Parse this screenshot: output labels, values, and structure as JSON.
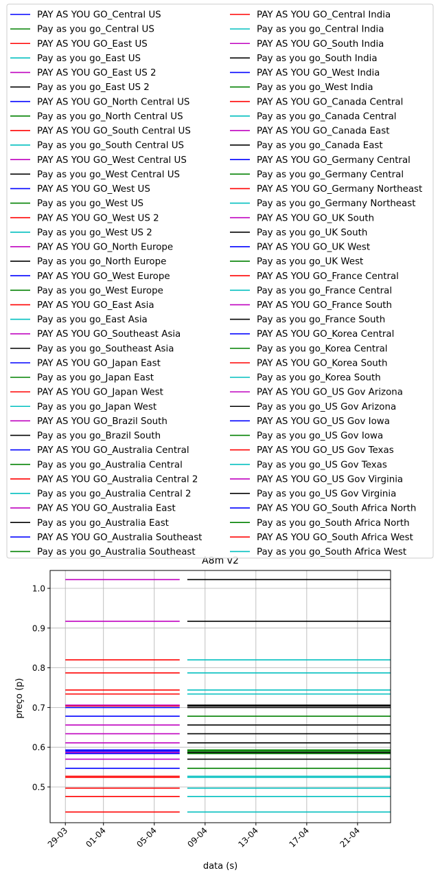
{
  "chart_data": {
    "type": "line",
    "title": "A8m v2",
    "xlabel": "data (s)",
    "ylabel": "preço (p)",
    "x_ticks": [
      "29-03",
      "01-04",
      "05-04",
      "09-04",
      "13-04",
      "17-04",
      "21-04"
    ],
    "x_tick_offsets_days": [
      0,
      3,
      7,
      11,
      15,
      19,
      23
    ],
    "x_range_days": [
      -1.2,
      25.6
    ],
    "segment_a_days": [
      0,
      9
    ],
    "segment_b_days": [
      9.6,
      25.6
    ],
    "y_ticks": [
      "0.5",
      "0.6",
      "0.7",
      "0.8",
      "0.9",
      "1.0"
    ],
    "y_tick_values": [
      0.5,
      0.6,
      0.7,
      0.8,
      0.9,
      1.0
    ],
    "ylim": [
      0.41,
      1.045
    ],
    "grid": true,
    "legend_columns": 2,
    "legend_placement": "top",
    "color_cycle": [
      "#0000ff",
      "#008000",
      "#ff0000",
      "#00bfbf",
      "#bf00bf",
      "#000000"
    ],
    "segment_a_prices": [
      0.437,
      0.476,
      0.497,
      0.524,
      0.527,
      0.547,
      0.57,
      0.584,
      0.587,
      0.59,
      0.593,
      0.611,
      0.634,
      0.656,
      0.678,
      0.7,
      0.704,
      0.706,
      0.734,
      0.744,
      0.787,
      0.82,
      0.917,
      1.022
    ],
    "segment_a_colors": [
      "#ff0000",
      "#ff0000",
      "#ff0000",
      "#ff0000",
      "#ff0000",
      "#0000ff",
      "#bf00bf",
      "#0000ff",
      "#bf00bf",
      "#0000ff",
      "#0000ff",
      "#bf00bf",
      "#bf00bf",
      "#bf00bf",
      "#0000ff",
      "#0000ff",
      "#ff0000",
      "#bf00bf",
      "#ff0000",
      "#ff0000",
      "#ff0000",
      "#ff0000",
      "#bf00bf",
      "#bf00bf"
    ],
    "segment_b_prices": [
      0.437,
      0.476,
      0.497,
      0.524,
      0.527,
      0.547,
      0.57,
      0.584,
      0.587,
      0.59,
      0.593,
      0.611,
      0.634,
      0.656,
      0.678,
      0.7,
      0.704,
      0.706,
      0.734,
      0.744,
      0.787,
      0.82,
      0.917,
      1.022
    ],
    "segment_b_colors": [
      "#00bfbf",
      "#00bfbf",
      "#00bfbf",
      "#00bfbf",
      "#00bfbf",
      "#008000",
      "#000000",
      "#008000",
      "#000000",
      "#008000",
      "#008000",
      "#000000",
      "#000000",
      "#000000",
      "#008000",
      "#000000",
      "#000000",
      "#000000",
      "#00bfbf",
      "#00bfbf",
      "#00bfbf",
      "#00bfbf",
      "#000000",
      "#000000"
    ]
  },
  "legend": {
    "items": [
      "PAY AS YOU GO_Central US",
      "Pay as you go_Central US",
      "PAY AS YOU GO_East US",
      "Pay as you go_East US",
      "PAY AS YOU GO_East US 2",
      "Pay as you go_East US 2",
      "PAY AS YOU GO_North Central US",
      "Pay as you go_North Central US",
      "PAY AS YOU GO_South Central US",
      "Pay as you go_South Central US",
      "PAY AS YOU GO_West Central US",
      "Pay as you go_West Central US",
      "PAY AS YOU GO_West US",
      "Pay as you go_West US",
      "PAY AS YOU GO_West US 2",
      "Pay as you go_West US 2",
      "PAY AS YOU GO_North Europe",
      "Pay as you go_North Europe",
      "PAY AS YOU GO_West Europe",
      "Pay as you go_West Europe",
      "PAY AS YOU GO_East Asia",
      "Pay as you go_East Asia",
      "PAY AS YOU GO_Southeast Asia",
      "Pay as you go_Southeast Asia",
      "PAY AS YOU GO_Japan East",
      "Pay as you go_Japan East",
      "PAY AS YOU GO_Japan West",
      "Pay as you go_Japan West",
      "PAY AS YOU GO_Brazil South",
      "Pay as you go_Brazil South",
      "PAY AS YOU GO_Australia Central",
      "Pay as you go_Australia Central",
      "PAY AS YOU GO_Australia Central 2",
      "Pay as you go_Australia Central 2",
      "PAY AS YOU GO_Australia East",
      "Pay as you go_Australia East",
      "PAY AS YOU GO_Australia Southeast",
      "Pay as you go_Australia Southeast",
      "PAY AS YOU GO_Central India",
      "Pay as you go_Central India",
      "PAY AS YOU GO_South India",
      "Pay as you go_South India",
      "PAY AS YOU GO_West India",
      "Pay as you go_West India",
      "PAY AS YOU GO_Canada Central",
      "Pay as you go_Canada Central",
      "PAY AS YOU GO_Canada East",
      "Pay as you go_Canada East",
      "PAY AS YOU GO_Germany Central",
      "Pay as you go_Germany Central",
      "PAY AS YOU GO_Germany Northeast",
      "Pay as you go_Germany Northeast",
      "PAY AS YOU GO_UK South",
      "Pay as you go_UK South",
      "PAY AS YOU GO_UK West",
      "Pay as you go_UK West",
      "PAY AS YOU GO_France Central",
      "Pay as you go_France Central",
      "PAY AS YOU GO_France South",
      "Pay as you go_France South",
      "PAY AS YOU GO_Korea Central",
      "Pay as you go_Korea Central",
      "PAY AS YOU GO_Korea South",
      "Pay as you go_Korea South",
      "PAY AS YOU GO_US Gov Arizona",
      "Pay as you go_US Gov Arizona",
      "PAY AS YOU GO_US Gov Iowa",
      "Pay as you go_US Gov Iowa",
      "PAY AS YOU GO_US Gov Texas",
      "Pay as you go_US Gov Texas",
      "PAY AS YOU GO_US Gov Virginia",
      "Pay as you go_US Gov Virginia",
      "PAY AS YOU GO_South Africa North",
      "Pay as you go_South Africa North",
      "PAY AS YOU GO_South Africa West",
      "Pay as you go_South Africa West"
    ]
  }
}
